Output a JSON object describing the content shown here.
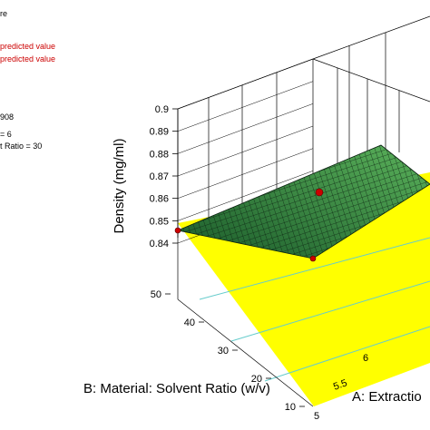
{
  "legend": {
    "line_1": "re",
    "line_2": "predicted value",
    "line_3": "predicted value",
    "line_4": "908",
    "line_5": "= 6",
    "line_6": "t Ratio = 30"
  },
  "chart_data": {
    "type": "surface",
    "zlabel": "Density  (mg/ml)",
    "ylabel": "B: Material: Solvent Ratio (w/v)",
    "xlabel": "A: Extractio",
    "z_ticks": [
      "0.84",
      "0.85",
      "0.86",
      "0.87",
      "0.88",
      "0.89",
      "0.9"
    ],
    "y_ticks": [
      "50",
      "40",
      "30",
      "20",
      "10"
    ],
    "x_tick_5": "5",
    "x_tick_55": "5.5",
    "x_tick_6": "6",
    "zlim": [
      0.84,
      0.9
    ],
    "surface_corners": {
      "A5_B50": 0.8505,
      "A5_B10": 0.8445,
      "A7_B50": 0.8722,
      "A7_B10": 0.8648
    },
    "design_points": [
      {
        "A": 6,
        "B": 30,
        "density": 0.867,
        "position": "above surface"
      }
    ],
    "colors": {
      "floor": "#ffff00",
      "floor_contour": "#66cccc",
      "surface_low": "#1a5a2a",
      "surface_high": "#5bb25b",
      "surface_mesh": "#0a2010",
      "point": "#cc0000"
    }
  }
}
